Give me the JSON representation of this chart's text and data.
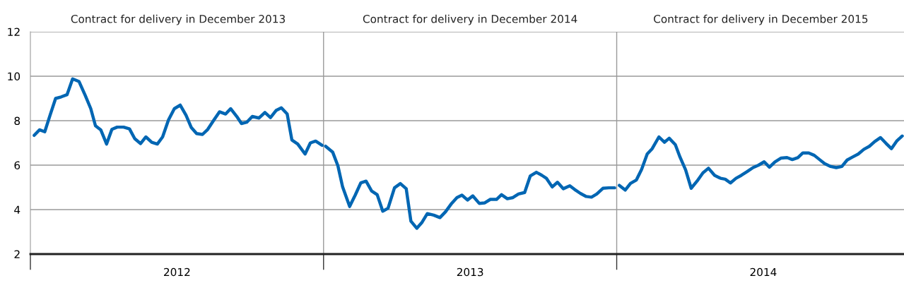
{
  "chart_data": {
    "type": "line",
    "xlim": [
      2012,
      2014.98
    ],
    "ylim": [
      2,
      12
    ],
    "yticks": [
      2,
      4,
      6,
      8,
      10,
      12
    ],
    "xticks": [
      {
        "value": 2012,
        "label": null
      },
      {
        "value": 2012.5,
        "label": "2012"
      },
      {
        "value": 2013,
        "label": null
      },
      {
        "value": 2013.5,
        "label": "2013"
      },
      {
        "value": 2014,
        "label": null
      },
      {
        "value": 2014.5,
        "label": "2014"
      }
    ],
    "annotations": [
      "Contract for delivery in December 2013",
      "Contract for delivery in December 2014",
      "Contract for delivery in December 2015"
    ],
    "grid": "y",
    "line_style": "solid",
    "marker": "none",
    "ref_lines": [
      {
        "axis": "x",
        "value": 2013,
        "color": "#9a9a9a"
      },
      {
        "axis": "x",
        "value": 2014,
        "color": "#9a9a9a"
      }
    ],
    "series": [
      {
        "color": "#0066b3",
        "x": [
          2012.013,
          2012.031,
          2012.049,
          2012.067,
          2012.086,
          2012.105,
          2012.125,
          2012.144,
          2012.166,
          2012.187,
          2012.206,
          2012.222,
          2012.24,
          2012.26,
          2012.278,
          2012.296,
          2012.318,
          2012.338,
          2012.356,
          2012.376,
          2012.394,
          2012.414,
          2012.433,
          2012.451,
          2012.471,
          2012.491,
          2012.511,
          2012.531,
          2012.549,
          2012.567,
          2012.587,
          2012.605,
          2012.626,
          2012.645,
          2012.666,
          2012.683,
          2012.704,
          2012.72,
          2012.738,
          2012.757,
          2012.78,
          2012.8,
          2012.819,
          2012.838,
          2012.856,
          2012.876,
          2012.892,
          2012.912,
          2012.937,
          2012.955,
          2012.973,
          2012.995
        ],
        "values": [
          7.34,
          7.59,
          7.5,
          8.24,
          9.0,
          9.07,
          9.17,
          9.88,
          9.76,
          9.14,
          8.54,
          7.77,
          7.59,
          6.95,
          7.61,
          7.71,
          7.71,
          7.63,
          7.19,
          6.97,
          7.27,
          7.03,
          6.95,
          7.27,
          8.03,
          8.54,
          8.7,
          8.24,
          7.69,
          7.42,
          7.38,
          7.61,
          8.03,
          8.4,
          8.3,
          8.54,
          8.19,
          7.87,
          7.93,
          8.19,
          8.12,
          8.37,
          8.14,
          8.46,
          8.58,
          8.3,
          7.13,
          6.95,
          6.5,
          7.0,
          7.08,
          6.89
        ]
      },
      {
        "color": "#0066b3",
        "x": [
          2013.007,
          2013.031,
          2013.049,
          2013.065,
          2013.089,
          2013.108,
          2013.127,
          2013.145,
          2013.164,
          2013.183,
          2013.202,
          2013.22,
          2013.242,
          2013.262,
          2013.282,
          2013.298,
          2013.318,
          2013.336,
          2013.354,
          2013.376,
          2013.397,
          2013.416,
          2013.437,
          2013.455,
          2013.472,
          2013.491,
          2013.509,
          2013.531,
          2013.549,
          2013.569,
          2013.59,
          2013.607,
          2013.627,
          2013.646,
          2013.665,
          2013.686,
          2013.705,
          2013.726,
          2013.745,
          2013.76,
          2013.78,
          2013.798,
          2013.818,
          2013.84,
          2013.856,
          2013.876,
          2013.896,
          2013.914,
          2013.932,
          2013.953,
          2013.973,
          2013.993
        ],
        "values": [
          6.85,
          6.59,
          5.97,
          5.02,
          4.14,
          4.65,
          5.2,
          5.28,
          4.84,
          4.67,
          3.93,
          4.06,
          4.98,
          5.17,
          4.94,
          3.48,
          3.16,
          3.43,
          3.82,
          3.75,
          3.64,
          3.9,
          4.28,
          4.54,
          4.65,
          4.43,
          4.62,
          4.28,
          4.3,
          4.46,
          4.46,
          4.67,
          4.49,
          4.54,
          4.7,
          4.77,
          5.51,
          5.68,
          5.54,
          5.41,
          5.02,
          5.23,
          4.94,
          5.07,
          4.91,
          4.73,
          4.59,
          4.56,
          4.7,
          4.96,
          4.98,
          4.98
        ]
      },
      {
        "color": "#0066b3",
        "x": [
          2014.009,
          2014.029,
          2014.047,
          2014.067,
          2014.085,
          2014.104,
          2014.121,
          2014.144,
          2014.163,
          2014.179,
          2014.2,
          2014.216,
          2014.235,
          2014.254,
          2014.274,
          2014.294,
          2014.313,
          2014.334,
          2014.354,
          2014.37,
          2014.388,
          2014.407,
          2014.425,
          2014.444,
          2014.465,
          2014.484,
          2014.503,
          2014.521,
          2014.54,
          2014.561,
          2014.581,
          2014.599,
          2014.618,
          2014.635,
          2014.655,
          2014.674,
          2014.692,
          2014.709,
          2014.73,
          2014.749,
          2014.768,
          2014.786,
          2014.804,
          2014.824,
          2014.843,
          2014.862,
          2014.88,
          2014.9,
          2014.918,
          2014.937,
          2014.955,
          2014.974
        ],
        "values": [
          5.09,
          4.88,
          5.18,
          5.33,
          5.81,
          6.5,
          6.74,
          7.27,
          7.03,
          7.21,
          6.92,
          6.36,
          5.79,
          4.96,
          5.28,
          5.65,
          5.86,
          5.54,
          5.41,
          5.37,
          5.2,
          5.41,
          5.54,
          5.7,
          5.89,
          6.0,
          6.15,
          5.91,
          6.15,
          6.32,
          6.34,
          6.25,
          6.34,
          6.55,
          6.55,
          6.44,
          6.25,
          6.07,
          5.94,
          5.89,
          5.94,
          6.23,
          6.36,
          6.5,
          6.71,
          6.85,
          7.06,
          7.24,
          6.99,
          6.74,
          7.08,
          7.31
        ]
      }
    ]
  }
}
